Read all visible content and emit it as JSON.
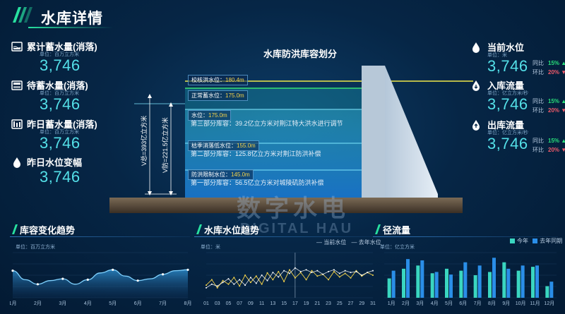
{
  "header": {
    "title": "水库详情"
  },
  "left_stats": [
    {
      "label": "累计蓄水量(消落)",
      "unit": "单位：百万立方米",
      "value": "3,746",
      "icon": "reservoir-icon"
    },
    {
      "label": "待蓄水量(消落)",
      "unit": "单位：百万立方米",
      "value": "3,746",
      "icon": "tank-icon"
    },
    {
      "label": "昨日蓄水量(消落)",
      "unit": "单位：百万立方米",
      "value": "3,746",
      "icon": "storage-icon"
    },
    {
      "label": "昨日水位变幅",
      "unit": "",
      "value": "3,746",
      "icon": "water-level-icon"
    }
  ],
  "right_stats": [
    {
      "label": "当前水位",
      "unit": "单位：米",
      "value": "3,746",
      "icon": "water-drop-icon",
      "yoy_label": "同比",
      "yoy_value": "15%",
      "mom_label": "环比",
      "mom_value": "20%"
    },
    {
      "label": "入库流量",
      "unit": "单位：亿立方米/秒",
      "value": "3,746",
      "icon": "inflow-icon",
      "yoy_label": "同比",
      "yoy_value": "15%",
      "mom_label": "环比",
      "mom_value": "20%"
    },
    {
      "label": "出库流量",
      "unit": "单位：亿立方米/秒",
      "value": "3,746",
      "icon": "outflow-icon",
      "yoy_label": "同比",
      "yoy_value": "15%",
      "mom_label": "环比",
      "mom_value": "20%"
    }
  ],
  "center": {
    "title": "水库防洪库容划分",
    "levels": [
      {
        "label": "校核洪水位：",
        "value": "180.4m"
      },
      {
        "label": "正常蓄水位：",
        "value": "175.0m"
      },
      {
        "label": "水位：",
        "value": "175.0m"
      },
      {
        "label": "枯季消落低水位：",
        "value": "155.0m"
      },
      {
        "label": "防洪限制水位：",
        "value": "145.0m"
      }
    ],
    "parts": [
      "第三部分库容：39.2亿立方米对荆江特大洪水进行调节",
      "第二部分库容：125.8亿立方米对荆江防洪补偿",
      "第一部分库容：56.5亿立方米对城陵矶防洪补偿"
    ],
    "v_total": "V总=393亿立方米",
    "v_flood": "V防=221.5亿立方米",
    "watermark_cn": "数字水电",
    "watermark_en": "DIGITAL HAU"
  },
  "capacity_panel": {
    "title": "库容变化趋势",
    "unit": "单位：百万立方米"
  },
  "level_panel": {
    "title": "水库水位趋势",
    "unit": "单位：米",
    "legend": [
      "当前水位",
      "去年水位"
    ]
  },
  "flow_panel": {
    "title": "径流量",
    "unit": "单位：亿立方米",
    "legend": [
      "今年",
      "去年同期"
    ]
  },
  "colors": {
    "accent": "#28e0a0",
    "value": "#54e0e8",
    "up": "#28e07a",
    "down": "#f05a6a",
    "bar_this": "#3ad6c0",
    "bar_last": "#2a8ee8"
  },
  "chart_data": [
    {
      "type": "area",
      "title": "库容变化趋势",
      "categories": [
        "1月",
        "2月",
        "3月",
        "4月",
        "5月",
        "6月",
        "7月",
        "8月"
      ],
      "x": [
        1,
        1.5,
        2,
        2.5,
        3,
        3.5,
        4,
        4.5,
        5,
        5.5,
        6,
        6.5,
        7,
        7.5,
        8
      ],
      "values": [
        60,
        40,
        30,
        38,
        42,
        30,
        40,
        55,
        62,
        48,
        38,
        42,
        52,
        60,
        62
      ],
      "ylim": [
        0,
        100
      ]
    },
    {
      "type": "line",
      "title": "水库水位趋势",
      "categories": [
        "01",
        "03",
        "05",
        "07",
        "09",
        "11",
        "13",
        "15",
        "17",
        "19",
        "21",
        "23",
        "25",
        "27",
        "29",
        "31"
      ],
      "x": [
        1,
        2,
        3,
        4,
        5,
        6,
        7,
        8,
        9,
        10,
        11,
        12,
        13,
        14,
        15,
        16,
        17,
        18,
        19,
        20,
        21,
        22,
        23,
        24,
        25,
        26,
        27,
        28,
        29,
        30,
        31
      ],
      "series": [
        {
          "name": "当前水位",
          "values": [
            28,
            40,
            22,
            38,
            30,
            45,
            26,
            50,
            34,
            48,
            30,
            55,
            40,
            58,
            36,
            62,
            44,
            56,
            40,
            60,
            48,
            52,
            40,
            58,
            46,
            54,
            44,
            60,
            48,
            56,
            50
          ]
        },
        {
          "name": "去年水位",
          "values": [
            22,
            30,
            26,
            34,
            42,
            30,
            40,
            28,
            45,
            32,
            50,
            38,
            56,
            46,
            60,
            54,
            66,
            58,
            62,
            56,
            60,
            52,
            58,
            62,
            54,
            60,
            56,
            58,
            50,
            56,
            60
          ]
        }
      ],
      "ylim": [
        0,
        100
      ]
    },
    {
      "type": "bar",
      "title": "径流量",
      "categories": [
        "1月",
        "2月",
        "3月",
        "4月",
        "5月",
        "6月",
        "7月",
        "8月",
        "9月",
        "10月",
        "11月",
        "12月"
      ],
      "series": [
        {
          "name": "今年",
          "values": [
            30,
            45,
            50,
            38,
            45,
            42,
            35,
            40,
            55,
            42,
            48,
            18
          ]
        },
        {
          "name": "去年同期",
          "values": [
            42,
            60,
            58,
            40,
            36,
            55,
            50,
            62,
            45,
            50,
            50,
            25
          ]
        }
      ],
      "ylim": [
        0,
        70
      ]
    }
  ]
}
